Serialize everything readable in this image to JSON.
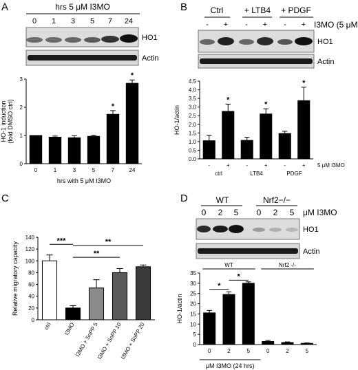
{
  "figure": {
    "panel_labels": [
      "A",
      "B",
      "C",
      "D"
    ],
    "panelA": {
      "header": "hrs 5 μM I3MO",
      "lanes": [
        "0",
        "1",
        "3",
        "5",
        "7",
        "24"
      ],
      "blot_labels": [
        "HO1",
        "Actin"
      ]
    },
    "panelB": {
      "groups": [
        "Ctrl",
        "+ LTB4",
        "+ PDGF"
      ],
      "treatment_label": "I3MO (5 μM)",
      "signs": [
        "-",
        "+",
        "-",
        "+",
        "-",
        "+"
      ],
      "blot_labels": [
        "HO1",
        "Actin"
      ]
    },
    "panelD": {
      "groups": [
        "WT",
        "Nrf2−/−"
      ],
      "lanes": [
        "0",
        "2",
        "5",
        "0",
        "2",
        "5"
      ],
      "unit_label": "μM I3MO",
      "blot_labels": [
        "HO1",
        "Actin"
      ]
    }
  },
  "chart_data": [
    {
      "panel": "A",
      "type": "bar",
      "categories": [
        "0",
        "1",
        "3",
        "5",
        "7",
        "24"
      ],
      "values": [
        1.0,
        0.94,
        0.92,
        0.97,
        1.75,
        2.85
      ],
      "errors": [
        0.0,
        0.04,
        0.07,
        0.04,
        0.13,
        0.12
      ],
      "significance": [
        "",
        "",
        "",
        "",
        "*",
        "*"
      ],
      "xlabel": "hrs with 5 μM I3MO",
      "ylabel": "HO-1 induction\n(fold DMSO ctrl)",
      "ylim": [
        0,
        3
      ],
      "yticks": [
        0,
        1,
        2,
        3
      ],
      "colors": [
        "#000000"
      ]
    },
    {
      "panel": "B",
      "type": "bar",
      "categories": [
        "-",
        "+",
        "-",
        "+",
        "-",
        "+"
      ],
      "groups": [
        "ctrl",
        "LTB4",
        "PDGF"
      ],
      "values": [
        1.05,
        2.75,
        1.07,
        2.6,
        1.47,
        3.37
      ],
      "errors": [
        0.32,
        0.42,
        0.18,
        0.3,
        0.13,
        0.78
      ],
      "significance": [
        "",
        "*",
        "",
        "*",
        "",
        "*"
      ],
      "treatment_label": "5 μM I3MO",
      "ylabel": "HO-1/actin",
      "ylim": [
        0,
        4.5
      ],
      "yticks": [
        "0.0",
        "0.5",
        "1.0",
        "1.5",
        "2.0",
        "2.5",
        "3.0",
        "3.5",
        "4.0",
        "4.5"
      ],
      "colors": [
        "#000000"
      ]
    },
    {
      "panel": "C",
      "type": "bar",
      "categories": [
        "ctrl",
        "I3MO",
        "I3MO + SnPP 5",
        "I3MO + SnPP 10",
        "I3MO + SnPP 20"
      ],
      "values": [
        100,
        20,
        54,
        80,
        90
      ],
      "errors": [
        10,
        4,
        14,
        7,
        3
      ],
      "colors": [
        "#ffffff",
        "#000000",
        "#8a8a8a",
        "#5a5a5a",
        "#3a3a3a"
      ],
      "comparisons": [
        {
          "from": 1,
          "to": 0,
          "label": "***"
        },
        {
          "from": 1,
          "to": 3,
          "label": "**"
        },
        {
          "from": 1,
          "to": 4,
          "label": "**"
        }
      ],
      "ylabel": "Relative migratory capacity",
      "ylim": [
        0,
        140
      ],
      "yticks": [
        0,
        20,
        40,
        60,
        80,
        100,
        120,
        140
      ]
    },
    {
      "panel": "D",
      "type": "bar",
      "categories": [
        "0",
        "2",
        "5",
        "0",
        "2",
        "5"
      ],
      "groups": [
        "WT",
        "Nrf2 -/-"
      ],
      "values": [
        15.5,
        24.5,
        30.0,
        1.5,
        1.0,
        0.6
      ],
      "errors": [
        1.2,
        1.3,
        0.7,
        0.5,
        0.3,
        0.2
      ],
      "comparisons": [
        {
          "from": 0,
          "to": 1,
          "label": "*"
        },
        {
          "from": 1,
          "to": 2,
          "label": "*"
        }
      ],
      "xlabel": "μM I3MO (24 hrs)",
      "ylabel": "HO-1/actin",
      "ylim": [
        0,
        35
      ],
      "yticks": [
        0,
        5,
        10,
        15,
        20,
        25,
        30,
        35
      ],
      "colors": [
        "#000000"
      ]
    }
  ]
}
